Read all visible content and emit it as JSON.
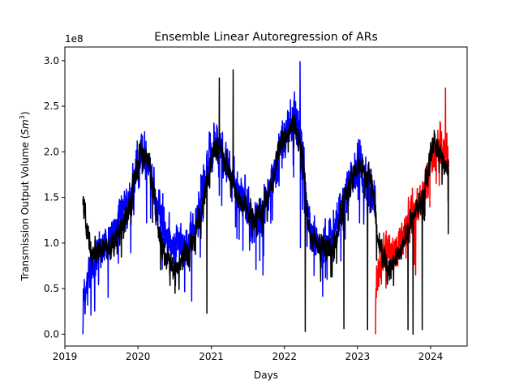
{
  "chart_data": {
    "type": "line",
    "title": "Ensemble Linear Autoregression of ARs",
    "xlabel": "Days",
    "ylabel": "Transmission Output Volume ($Sm^3$)",
    "ylabel_main": "Transmission Output Volume (",
    "ylabel_sm": "Sm",
    "ylabel_exp": "3",
    "ylabel_close": ")",
    "y_offset_text": "1e8",
    "y_scale": 100000000,
    "xlim": [
      "2019-01-01",
      "2024-07-01"
    ],
    "ylim": [
      -0.13,
      3.15
    ],
    "x_ticks": [
      "2019",
      "2020",
      "2021",
      "2022",
      "2023",
      "2024"
    ],
    "y_ticks": [
      "0.0",
      "0.5",
      "1.0",
      "1.5",
      "2.0",
      "2.5",
      "3.0"
    ],
    "grid": false,
    "series": [
      {
        "color": "#0000ff",
        "start": "2019-04-01",
        "end": "2023-03-31",
        "anchors": [
          [
            "2019-04-01",
            0.4
          ],
          [
            "2019-06-01",
            0.85
          ],
          [
            "2019-09-01",
            1.05
          ],
          [
            "2019-11-15",
            1.4
          ],
          [
            "2020-01-15",
            2.0
          ],
          [
            "2020-03-01",
            1.85
          ],
          [
            "2020-05-01",
            1.2
          ],
          [
            "2020-07-01",
            1.0
          ],
          [
            "2020-09-15",
            0.95
          ],
          [
            "2020-11-15",
            1.6
          ],
          [
            "2021-01-15",
            2.05
          ],
          [
            "2021-03-01",
            2.0
          ],
          [
            "2021-05-15",
            1.55
          ],
          [
            "2021-08-01",
            1.25
          ],
          [
            "2021-10-15",
            1.5
          ],
          [
            "2021-12-15",
            2.1
          ],
          [
            "2022-02-15",
            2.4
          ],
          [
            "2022-03-31",
            2.1
          ],
          [
            "2022-05-01",
            1.15
          ],
          [
            "2022-07-01",
            1.0
          ],
          [
            "2022-09-01",
            1.05
          ],
          [
            "2022-11-15",
            1.6
          ],
          [
            "2023-01-15",
            1.9
          ],
          [
            "2023-03-31",
            1.4
          ]
        ],
        "noise": 0.32,
        "spikes": [
          [
            "2019-04-01",
            0.0
          ],
          [
            "2022-03-20",
            2.99
          ],
          [
            "2022-03-22",
            0.95
          ]
        ]
      },
      {
        "color": "#ff0000",
        "start": "2023-04-01",
        "end": "2024-03-31",
        "anchors": [
          [
            "2023-04-01",
            0.55
          ],
          [
            "2023-05-15",
            0.9
          ],
          [
            "2023-07-01",
            0.9
          ],
          [
            "2023-09-01",
            1.2
          ],
          [
            "2023-11-01",
            1.4
          ],
          [
            "2024-01-01",
            1.9
          ],
          [
            "2024-02-15",
            2.05
          ],
          [
            "2024-03-31",
            1.95
          ]
        ],
        "noise": 0.3,
        "spikes": [
          [
            "2023-04-01",
            0.0
          ],
          [
            "2024-03-15",
            2.7
          ]
        ]
      },
      {
        "color": "#000000",
        "start": "2019-04-01",
        "end": "2024-03-31",
        "anchors": [
          [
            "2019-04-01",
            1.45
          ],
          [
            "2019-05-15",
            0.85
          ],
          [
            "2019-09-01",
            1.0
          ],
          [
            "2019-11-15",
            1.35
          ],
          [
            "2020-01-15",
            2.05
          ],
          [
            "2020-03-01",
            1.8
          ],
          [
            "2020-05-01",
            0.95
          ],
          [
            "2020-07-01",
            0.7
          ],
          [
            "2020-09-15",
            0.95
          ],
          [
            "2020-11-15",
            1.35
          ],
          [
            "2021-01-15",
            2.05
          ],
          [
            "2021-03-01",
            1.95
          ],
          [
            "2021-05-15",
            1.5
          ],
          [
            "2021-08-01",
            1.25
          ],
          [
            "2021-10-15",
            1.5
          ],
          [
            "2021-12-15",
            2.1
          ],
          [
            "2022-02-15",
            2.35
          ],
          [
            "2022-03-31",
            2.0
          ],
          [
            "2022-05-01",
            1.1
          ],
          [
            "2022-07-01",
            0.95
          ],
          [
            "2022-09-01",
            0.95
          ],
          [
            "2022-11-15",
            1.6
          ],
          [
            "2023-01-15",
            1.85
          ],
          [
            "2023-03-15",
            1.7
          ],
          [
            "2023-04-15",
            1.05
          ],
          [
            "2023-06-01",
            0.7
          ],
          [
            "2023-08-01",
            0.85
          ],
          [
            "2023-10-01",
            1.3
          ],
          [
            "2023-12-01",
            1.55
          ],
          [
            "2024-01-20",
            2.15
          ],
          [
            "2024-03-31",
            1.75
          ]
        ],
        "noise": 0.17,
        "spikes": [
          [
            "2020-12-10",
            0.23
          ],
          [
            "2021-02-10",
            2.81
          ],
          [
            "2021-04-20",
            2.9
          ],
          [
            "2022-04-15",
            0.03
          ],
          [
            "2022-10-25",
            0.06
          ],
          [
            "2023-02-20",
            0.05
          ],
          [
            "2023-09-10",
            0.05
          ],
          [
            "2023-10-05",
            0.0
          ],
          [
            "2023-11-20",
            0.05
          ],
          [
            "2024-03-29",
            1.1
          ]
        ]
      }
    ]
  }
}
